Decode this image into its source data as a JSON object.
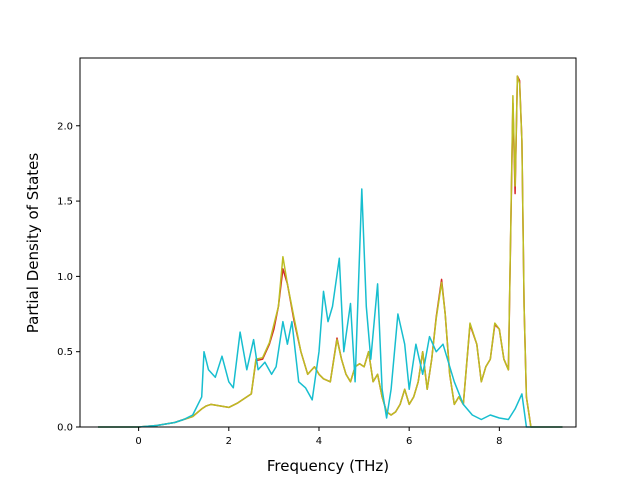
{
  "chart_data": {
    "type": "line",
    "title": "",
    "xlabel": "Frequency (THz)",
    "ylabel": "Partial Density of States",
    "xlim": [
      -1.3,
      9.7
    ],
    "ylim": [
      0.0,
      2.45
    ],
    "xticks": [
      0,
      2,
      4,
      6,
      8
    ],
    "yticks": [
      0.0,
      0.5,
      1.0,
      1.5,
      2.0
    ],
    "xtick_labels": [
      "0",
      "2",
      "4",
      "6",
      "8"
    ],
    "ytick_labels": [
      "0.0",
      "0.5",
      "1.0",
      "1.5",
      "2.0"
    ],
    "grid": false,
    "legend": "none",
    "series": [
      {
        "color": "#d62728",
        "x": [
          -0.9,
          0.0,
          0.4,
          0.8,
          1.0,
          1.2,
          1.4,
          1.5,
          1.6,
          1.8,
          2.0,
          2.2,
          2.4,
          2.5,
          2.6,
          2.75,
          2.9,
          3.0,
          3.1,
          3.2,
          3.3,
          3.45,
          3.6,
          3.75,
          3.9,
          4.0,
          4.1,
          4.25,
          4.4,
          4.5,
          4.6,
          4.7,
          4.8,
          4.9,
          5.0,
          5.1,
          5.2,
          5.3,
          5.4,
          5.5,
          5.6,
          5.7,
          5.8,
          5.9,
          6.0,
          6.1,
          6.2,
          6.3,
          6.4,
          6.5,
          6.6,
          6.72,
          6.8,
          6.9,
          7.0,
          7.1,
          7.2,
          7.35,
          7.5,
          7.6,
          7.7,
          7.8,
          7.9,
          8.0,
          8.1,
          8.2,
          8.3,
          8.35,
          8.4,
          8.45,
          8.5,
          8.55,
          8.6,
          8.7,
          9.4
        ],
        "values": [
          0.0,
          0.0,
          0.01,
          0.03,
          0.05,
          0.07,
          0.12,
          0.14,
          0.15,
          0.14,
          0.13,
          0.16,
          0.2,
          0.22,
          0.44,
          0.45,
          0.55,
          0.65,
          0.8,
          1.05,
          0.95,
          0.7,
          0.5,
          0.35,
          0.4,
          0.35,
          0.32,
          0.3,
          0.59,
          0.45,
          0.35,
          0.3,
          0.4,
          0.42,
          0.4,
          0.5,
          0.3,
          0.35,
          0.2,
          0.1,
          0.08,
          0.1,
          0.15,
          0.25,
          0.15,
          0.2,
          0.3,
          0.5,
          0.25,
          0.45,
          0.73,
          0.98,
          0.75,
          0.35,
          0.15,
          0.2,
          0.15,
          0.68,
          0.55,
          0.3,
          0.4,
          0.45,
          0.68,
          0.65,
          0.45,
          0.38,
          2.15,
          1.55,
          2.33,
          2.3,
          1.9,
          0.8,
          0.2,
          0.0,
          0.0
        ]
      },
      {
        "color": "#bcbd22",
        "x": [
          -0.9,
          0.0,
          0.4,
          0.8,
          1.0,
          1.2,
          1.4,
          1.5,
          1.6,
          1.8,
          2.0,
          2.2,
          2.4,
          2.5,
          2.6,
          2.75,
          2.9,
          3.0,
          3.1,
          3.2,
          3.3,
          3.45,
          3.6,
          3.75,
          3.9,
          4.0,
          4.1,
          4.25,
          4.4,
          4.5,
          4.6,
          4.7,
          4.8,
          4.9,
          5.0,
          5.1,
          5.2,
          5.3,
          5.4,
          5.5,
          5.6,
          5.7,
          5.8,
          5.9,
          6.0,
          6.1,
          6.2,
          6.3,
          6.4,
          6.5,
          6.6,
          6.72,
          6.8,
          6.9,
          7.0,
          7.1,
          7.2,
          7.35,
          7.5,
          7.6,
          7.7,
          7.8,
          7.9,
          8.0,
          8.1,
          8.2,
          8.3,
          8.35,
          8.4,
          8.45,
          8.5,
          8.55,
          8.6,
          8.7,
          9.4
        ],
        "values": [
          0.0,
          0.0,
          0.01,
          0.03,
          0.05,
          0.07,
          0.12,
          0.14,
          0.15,
          0.14,
          0.13,
          0.16,
          0.2,
          0.22,
          0.45,
          0.46,
          0.56,
          0.68,
          0.8,
          1.13,
          0.95,
          0.72,
          0.5,
          0.35,
          0.4,
          0.35,
          0.32,
          0.3,
          0.58,
          0.45,
          0.35,
          0.3,
          0.4,
          0.42,
          0.4,
          0.5,
          0.3,
          0.35,
          0.2,
          0.1,
          0.08,
          0.1,
          0.15,
          0.25,
          0.15,
          0.2,
          0.3,
          0.5,
          0.25,
          0.45,
          0.72,
          0.96,
          0.75,
          0.35,
          0.15,
          0.2,
          0.15,
          0.69,
          0.55,
          0.3,
          0.4,
          0.45,
          0.69,
          0.65,
          0.45,
          0.38,
          2.2,
          1.6,
          2.33,
          2.28,
          1.9,
          0.8,
          0.2,
          0.0,
          0.0
        ]
      },
      {
        "color": "#17becf",
        "x": [
          -0.9,
          0.0,
          0.4,
          0.8,
          1.0,
          1.2,
          1.4,
          1.45,
          1.55,
          1.7,
          1.85,
          2.0,
          2.1,
          2.25,
          2.4,
          2.55,
          2.65,
          2.8,
          2.95,
          3.05,
          3.2,
          3.3,
          3.4,
          3.55,
          3.7,
          3.85,
          4.0,
          4.1,
          4.2,
          4.3,
          4.45,
          4.55,
          4.7,
          4.8,
          4.95,
          5.05,
          5.15,
          5.3,
          5.4,
          5.5,
          5.6,
          5.75,
          5.9,
          6.0,
          6.15,
          6.3,
          6.45,
          6.6,
          6.75,
          6.85,
          7.0,
          7.2,
          7.4,
          7.6,
          7.8,
          8.0,
          8.2,
          8.35,
          8.5,
          8.6,
          9.4
        ],
        "values": [
          0.0,
          0.0,
          0.01,
          0.03,
          0.05,
          0.08,
          0.2,
          0.5,
          0.38,
          0.33,
          0.47,
          0.3,
          0.26,
          0.63,
          0.38,
          0.58,
          0.38,
          0.43,
          0.35,
          0.4,
          0.7,
          0.55,
          0.7,
          0.3,
          0.26,
          0.18,
          0.5,
          0.9,
          0.7,
          0.8,
          1.12,
          0.5,
          0.82,
          0.3,
          1.58,
          0.8,
          0.45,
          0.95,
          0.25,
          0.06,
          0.25,
          0.75,
          0.55,
          0.25,
          0.55,
          0.35,
          0.6,
          0.5,
          0.55,
          0.45,
          0.3,
          0.15,
          0.08,
          0.05,
          0.08,
          0.06,
          0.05,
          0.12,
          0.22,
          0.0,
          0.0
        ]
      }
    ]
  }
}
